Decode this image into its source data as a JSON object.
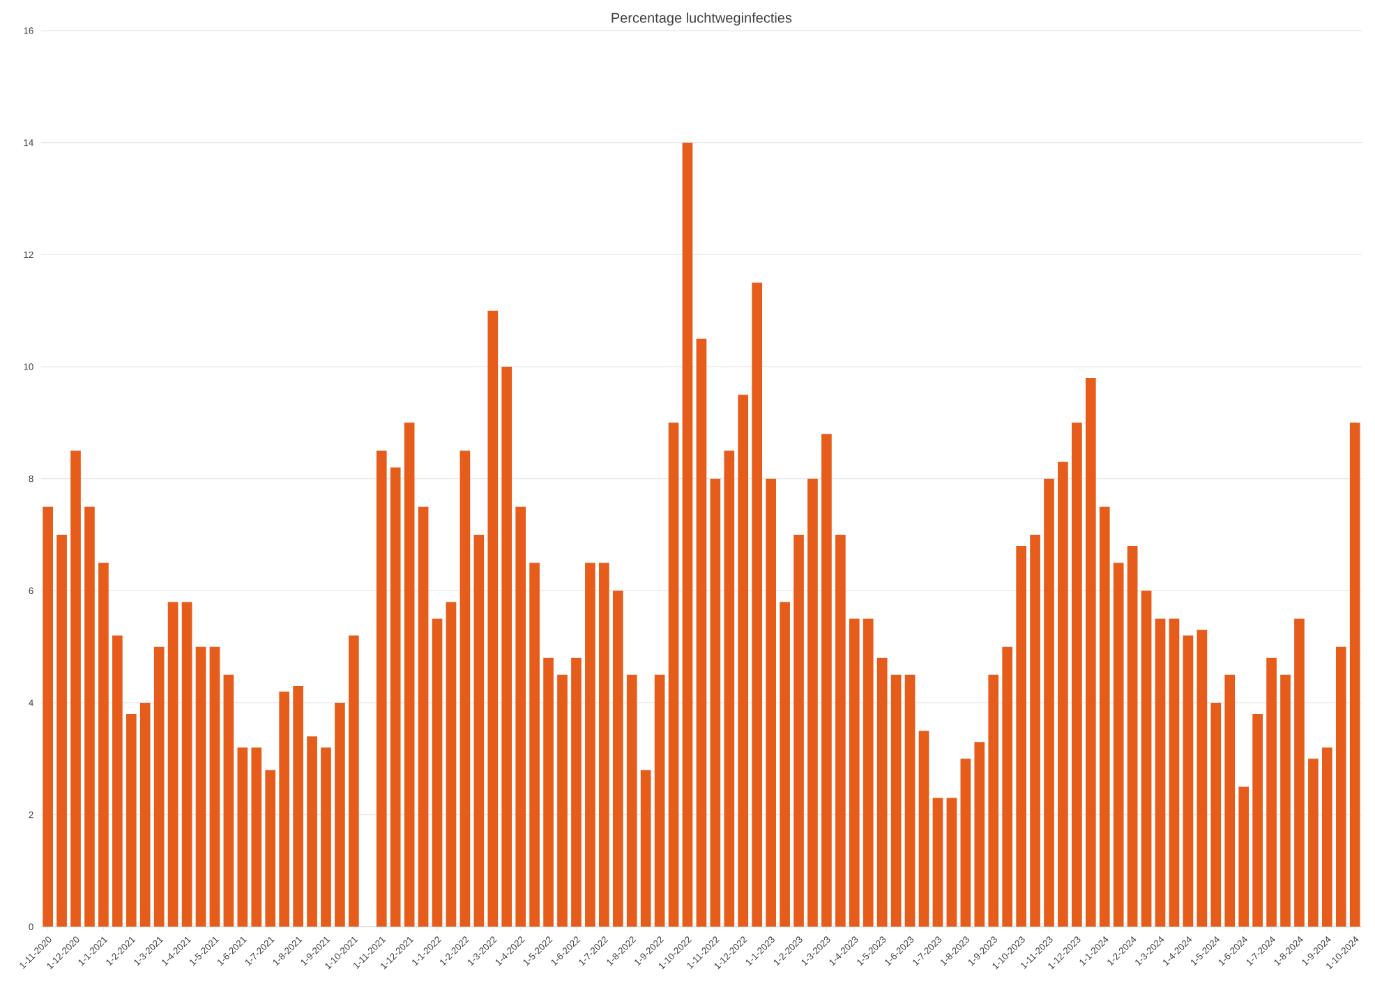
{
  "chart_data": {
    "type": "bar",
    "title": "Percentage luchtweginfecties",
    "color": "#e65c1b",
    "grid": "y",
    "categories": [
      "1-11-2020",
      null,
      "1-12-2020",
      null,
      "1-1-2021",
      null,
      "1-2-2021",
      null,
      "1-3-2021",
      null,
      "1-4-2021",
      null,
      "1-5-2021",
      null,
      "1-6-2021",
      null,
      "1-7-2021",
      null,
      "1-8-2021",
      null,
      "1-9-2021",
      null,
      "1-10-2021",
      null,
      "1-11-2021",
      null,
      "1-12-2021",
      null,
      "1-1-2022",
      null,
      "1-2-2022",
      null,
      "1-3-2022",
      null,
      "1-4-2022",
      null,
      "1-5-2022",
      null,
      "1-6-2022",
      null,
      "1-7-2022",
      null,
      "1-8-2022",
      null,
      "1-9-2022",
      null,
      "1-10-2022",
      null,
      "1-11-2022",
      null,
      "1-12-2022",
      null,
      "1-1-2023",
      null,
      "1-2-2023",
      null,
      "1-3-2023",
      null,
      "1-4-2023",
      null,
      "1-5-2023",
      null,
      "1-6-2023",
      null,
      "1-7-2023",
      null,
      "1-8-2023",
      null,
      "1-9-2023",
      null,
      "1-10-2023",
      null,
      "1-11-2023",
      null,
      "1-12-2023",
      null,
      "1-1-2024",
      null,
      "1-2-2024",
      null,
      "1-3-2024",
      null,
      "1-4-2024",
      null,
      "1-5-2024",
      null,
      "1-6-2024",
      null,
      "1-7-2024",
      null,
      "1-8-2024",
      null,
      "1-9-2024",
      null,
      "1-10-2024"
    ],
    "values": [
      7.5,
      7.0,
      8.5,
      7.5,
      6.5,
      5.2,
      3.8,
      4.0,
      5.0,
      5.8,
      5.8,
      5.0,
      5.0,
      4.5,
      3.2,
      3.2,
      2.8,
      4.2,
      4.3,
      3.4,
      3.2,
      4.0,
      5.2,
      null,
      8.5,
      8.2,
      9.0,
      7.5,
      5.5,
      5.8,
      8.5,
      7.0,
      11.0,
      10.0,
      7.5,
      6.5,
      4.8,
      4.5,
      4.8,
      6.5,
      6.5,
      6.0,
      4.5,
      2.8,
      4.5,
      9.0,
      14.0,
      10.5,
      8.0,
      8.5,
      9.5,
      11.5,
      8.0,
      5.8,
      7.0,
      8.0,
      8.8,
      7.0,
      5.5,
      5.5,
      4.8,
      4.5,
      4.5,
      3.5,
      2.3,
      2.3,
      3.0,
      3.3,
      4.5,
      5.0,
      6.8,
      7.0,
      8.0,
      8.3,
      9.0,
      9.8,
      7.5,
      6.5,
      6.8,
      6.0,
      5.5,
      5.5,
      5.2,
      5.3,
      4.0,
      4.5,
      2.5,
      3.8,
      4.8,
      4.5,
      5.5,
      3.0,
      3.2,
      5.0,
      9.0
    ],
    "ylim": [
      0,
      16
    ],
    "yticks": [
      0,
      2,
      4,
      6,
      8,
      10,
      12,
      14,
      16
    ]
  }
}
